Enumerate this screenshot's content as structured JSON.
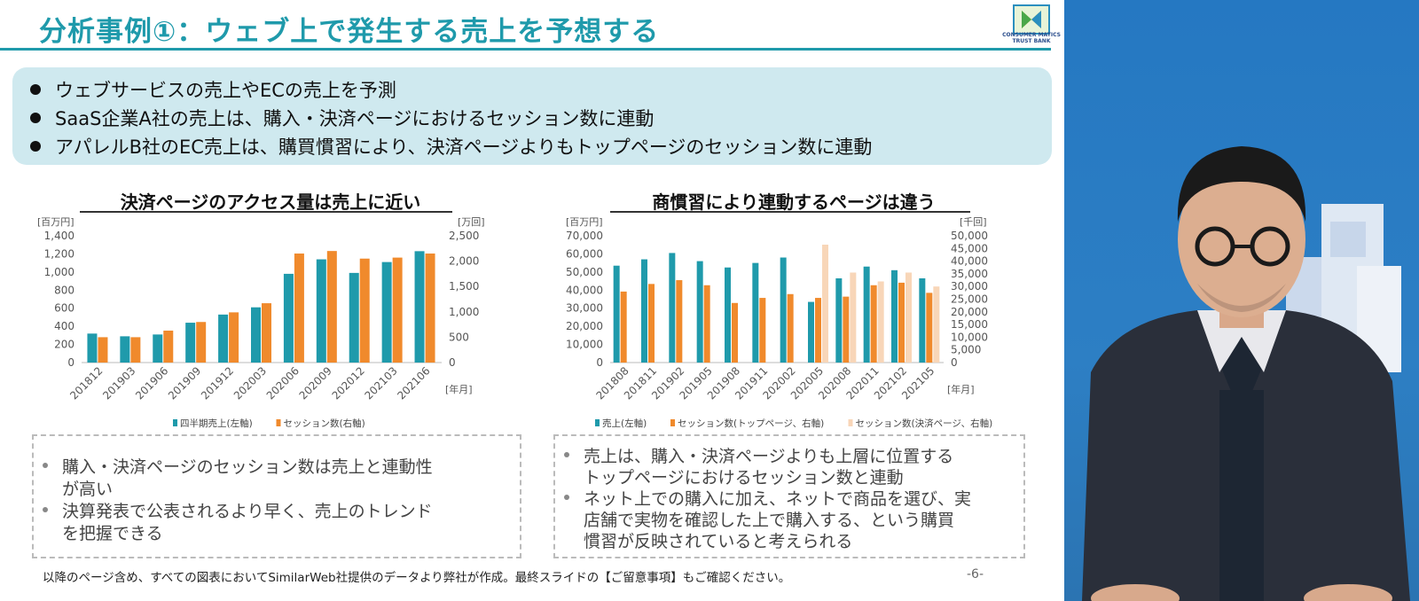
{
  "title": "分析事例①：ウェブ上で発生する売上を予想する",
  "logo_text": "CONSUMER MATICS TRUST BANK",
  "bullets": [
    "ウェブサービスの売上やECの売上を予測",
    "SaaS企業A社の売上は、購入・決済ページにおけるセッション数に連動",
    "アパレルB社のEC売上は、購買慣習により、決済ページよりもトップページのセッション数に連動"
  ],
  "chart_data": [
    {
      "type": "bar",
      "title": "決済ページのアクセス量は売上に近い",
      "categories": [
        "201812",
        "201903",
        "201906",
        "201909",
        "201912",
        "202003",
        "202006",
        "202009",
        "202012",
        "202103",
        "202106"
      ],
      "left_axis_unit": "[百万円]",
      "right_axis_unit": "[万回]",
      "x_unit": "[年月]",
      "left_ylim": [
        0,
        1400
      ],
      "right_ylim": [
        0,
        2500
      ],
      "left_ticks": [
        "0",
        "200",
        "400",
        "600",
        "800",
        "1,000",
        "1,200",
        "1,400"
      ],
      "right_ticks": [
        "0",
        "500",
        "1,000",
        "1,500",
        "2,000",
        "2,500"
      ],
      "series": [
        {
          "name": "四半期売上(左軸)",
          "axis": "left",
          "color": "#1f9aab",
          "values": [
            320,
            290,
            310,
            440,
            530,
            610,
            980,
            1140,
            990,
            1110,
            1230
          ]
        },
        {
          "name": "セッション数(右軸)",
          "axis": "right",
          "color": "#f08a2c",
          "values": [
            500,
            500,
            630,
            800,
            990,
            1170,
            2150,
            2200,
            2050,
            2070,
            2150
          ]
        }
      ]
    },
    {
      "type": "bar",
      "title": "商慣習により連動するページは違う",
      "categories": [
        "201808",
        "201811",
        "201902",
        "201905",
        "201908",
        "201911",
        "202002",
        "202005",
        "202008",
        "202011",
        "202102",
        "202105"
      ],
      "left_axis_unit": "[百万円]",
      "right_axis_unit": "[千回]",
      "x_unit": "[年月]",
      "left_ylim": [
        0,
        70000
      ],
      "right_ylim": [
        0,
        50000
      ],
      "left_ticks": [
        "0",
        "10,000",
        "20,000",
        "30,000",
        "40,000",
        "50,000",
        "60,000",
        "70,000"
      ],
      "right_ticks": [
        "0",
        "5,000",
        "10,000",
        "15,000",
        "20,000",
        "25,000",
        "30,000",
        "35,000",
        "40,000",
        "45,000",
        "50,000"
      ],
      "series": [
        {
          "name": "売上(左軸)",
          "axis": "left",
          "color": "#1f9aab",
          "values": [
            53500,
            57000,
            60500,
            56000,
            52500,
            55000,
            58000,
            33500,
            46500,
            53000,
            51000,
            46500
          ]
        },
        {
          "name": "セッション数(トップページ、右軸)",
          "axis": "right",
          "color": "#f08a2c",
          "values": [
            28000,
            31000,
            32500,
            30500,
            23500,
            25500,
            27000,
            25500,
            26000,
            30500,
            31500,
            27500
          ]
        },
        {
          "name": "セッション数(決済ページ、右軸)",
          "axis": "right",
          "color": "#f8d6b8",
          "values": [
            null,
            null,
            null,
            null,
            null,
            null,
            null,
            46500,
            35500,
            32000,
            35500,
            30000
          ]
        }
      ]
    }
  ],
  "notes_left": [
    {
      "bullet": true,
      "text": "購入・決済ページのセッション数は売上と連動性"
    },
    {
      "bullet": false,
      "text": "が高い"
    },
    {
      "bullet": true,
      "text": "決算発表で公表されるより早く、売上のトレンド"
    },
    {
      "bullet": false,
      "text": "を把握できる"
    }
  ],
  "notes_right": [
    {
      "bullet": true,
      "text": "売上は、購入・決済ページよりも上層に位置する"
    },
    {
      "bullet": false,
      "text": "トップページにおけるセッション数と連動"
    },
    {
      "bullet": true,
      "text": "ネット上での購入に加え、ネットで商品を選び、実"
    },
    {
      "bullet": false,
      "text": "店舗で実物を確認した上で購入する、という購買"
    },
    {
      "bullet": false,
      "text": "慣習が反映されていると考えられる"
    }
  ],
  "footer": "以降のページ含め、すべての図表においてSimilarWeb社提供のデータより弊社が作成。最終スライドの【ご留意事項】もご確認ください。",
  "page_number": "-6-"
}
